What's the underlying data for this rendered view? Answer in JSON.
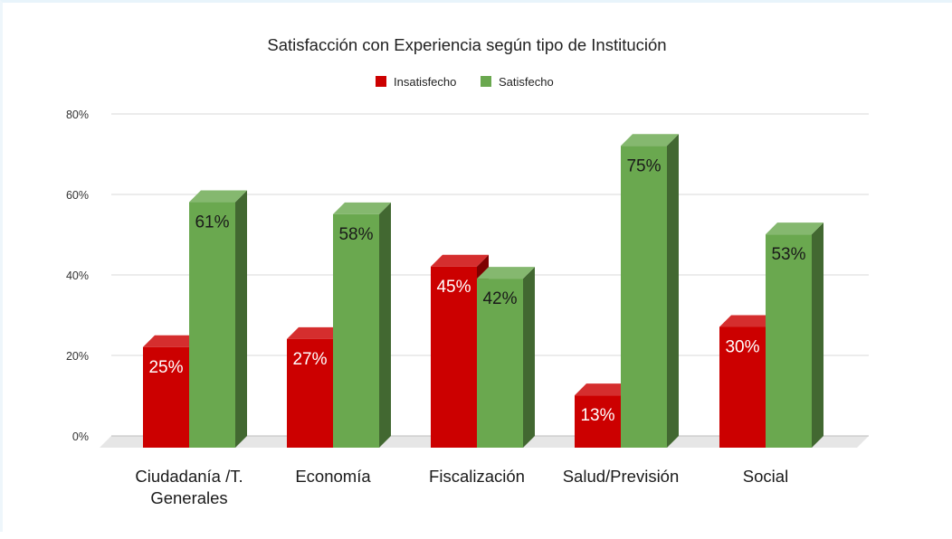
{
  "chart_data": {
    "type": "bar",
    "title": "Satisfacción con Experiencia según tipo de Institución",
    "categories": [
      [
        "Ciudadanía /T.",
        "Generales"
      ],
      [
        "Economía"
      ],
      [
        "Fiscalización"
      ],
      [
        "Salud/Previsión"
      ],
      [
        "Social"
      ]
    ],
    "series": [
      {
        "name": "Insatisfecho",
        "color": "#cc0000",
        "values": [
          25,
          27,
          45,
          13,
          30
        ],
        "labels": [
          "25%",
          "27%",
          "45%",
          "13%",
          "30%"
        ]
      },
      {
        "name": "Satisfecho",
        "color": "#6aa84f",
        "values": [
          61,
          58,
          42,
          75,
          53
        ],
        "labels": [
          "61%",
          "58%",
          "42%",
          "75%",
          "53%"
        ]
      }
    ],
    "y_ticks": [
      "0%",
      "20%",
      "40%",
      "60%",
      "80%"
    ],
    "ylim": [
      0,
      80
    ],
    "grid": true,
    "legend": "top",
    "style": "3d-bar"
  }
}
